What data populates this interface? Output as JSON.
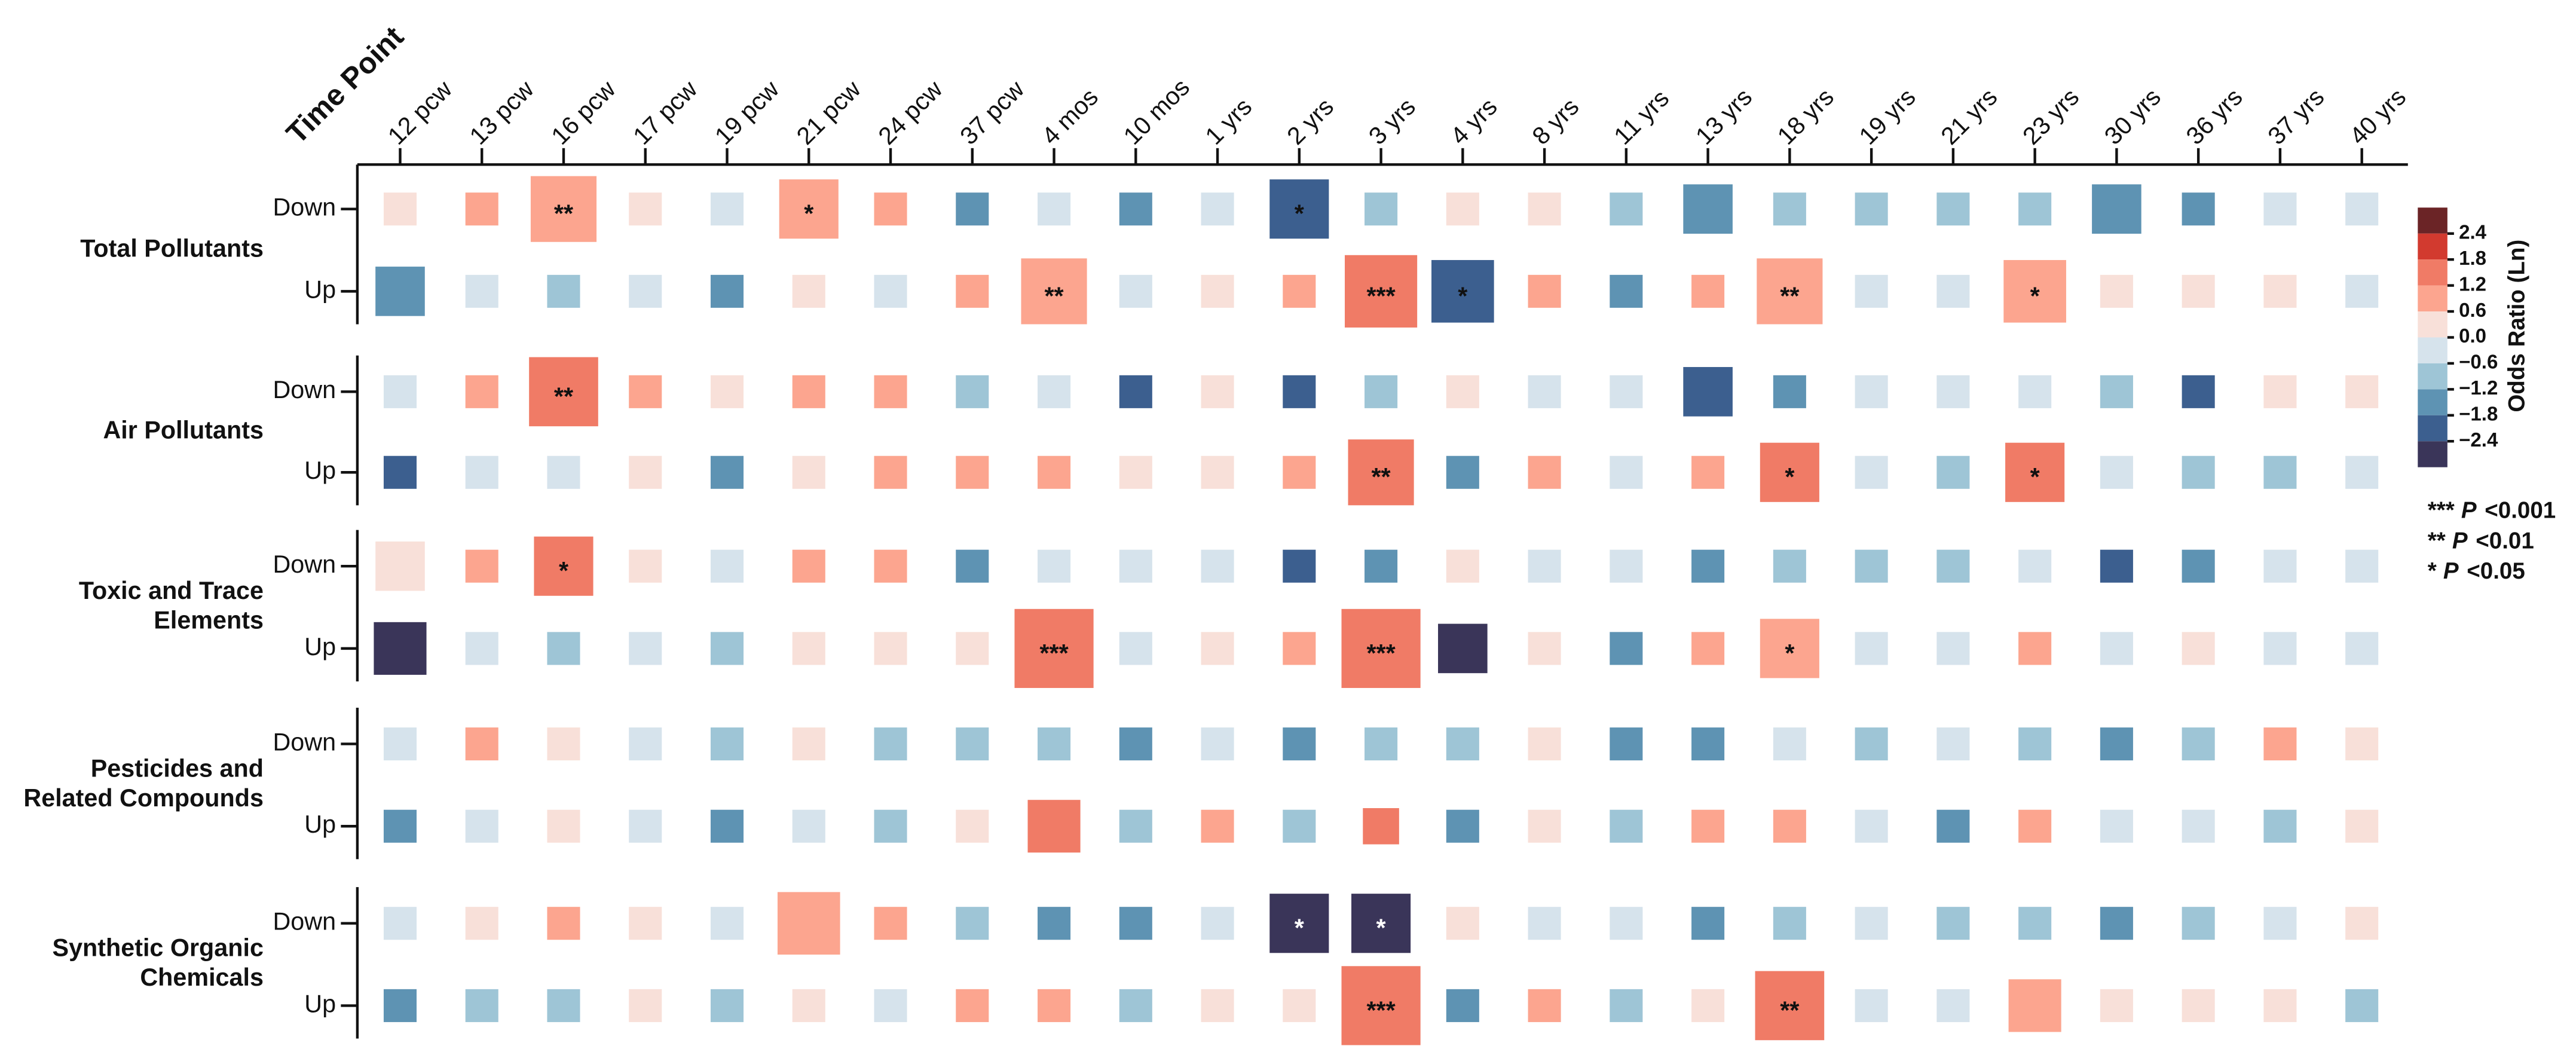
{
  "chart_data": {
    "type": "heatmap",
    "x_title": "Time Point",
    "categories": [
      "12 pcw",
      "13 pcw",
      "16 pcw",
      "17 pcw",
      "19 pcw",
      "21 pcw",
      "24 pcw",
      "37 pcw",
      "4 mos",
      "10 mos",
      "1 yrs",
      "2 yrs",
      "3 yrs",
      "4 yrs",
      "8 yrs",
      "11 yrs",
      "13 yrs",
      "18 yrs",
      "19 yrs",
      "21 yrs",
      "23 yrs",
      "30 yrs",
      "36 yrs",
      "37 yrs",
      "40 yrs"
    ],
    "groups": [
      {
        "name": [
          "Total Pollutants"
        ],
        "rows": [
          {
            "label": "Down",
            "values": [
              0.1,
              0.7,
              0.9,
              0.3,
              -0.3,
              0.8,
              0.7,
              -1.3,
              -0.4,
              -1.3,
              -0.4,
              -2.0,
              -0.9,
              0.2,
              0.1,
              -0.7,
              -1.3,
              -0.9,
              -0.9,
              -0.9,
              -0.9,
              -1.3,
              -1.3,
              -0.4,
              -0.2
            ],
            "sizes": [
              0.5,
              0.5,
              1,
              0.5,
              0.5,
              0.9,
              0.5,
              0.5,
              0.5,
              0.5,
              0.5,
              0.9,
              0.5,
              0.5,
              0.5,
              0.5,
              0.75,
              0.5,
              0.5,
              0.5,
              0.5,
              0.75,
              0.5,
              0.5,
              0.5
            ],
            "significance": [
              null,
              null,
              "**",
              null,
              null,
              "*",
              null,
              null,
              null,
              null,
              null,
              "*",
              null,
              null,
              null,
              null,
              null,
              null,
              null,
              null,
              null,
              null,
              null,
              null,
              null
            ]
          },
          {
            "label": "Up",
            "values": [
              -1.3,
              -0.3,
              -0.7,
              -0.3,
              -1.3,
              0.1,
              -0.3,
              0.8,
              0.9,
              -0.3,
              0.4,
              0.7,
              1.4,
              -2.0,
              0.7,
              -1.3,
              0.7,
              0.9,
              -0.3,
              -0.4,
              0.9,
              0.2,
              0.1,
              0.1,
              -0.3
            ],
            "sizes": [
              0.75,
              0.5,
              0.5,
              0.5,
              0.5,
              0.5,
              0.5,
              0.5,
              1,
              0.5,
              0.5,
              0.5,
              1.1,
              0.95,
              0.5,
              0.5,
              0.5,
              1,
              0.5,
              0.5,
              0.95,
              0.5,
              0.5,
              0.5,
              0.5
            ],
            "significance": [
              null,
              null,
              null,
              null,
              null,
              null,
              null,
              null,
              "**",
              null,
              null,
              null,
              "***",
              "*",
              null,
              null,
              null,
              "**",
              null,
              null,
              "*",
              null,
              null,
              null,
              null
            ]
          }
        ]
      },
      {
        "name": [
          "Air Pollutants"
        ],
        "rows": [
          {
            "label": "Down",
            "values": [
              -0.3,
              0.7,
              1.4,
              0.7,
              0.3,
              1.0,
              0.7,
              -0.9,
              -0.4,
              -2.0,
              0.1,
              -2.0,
              -0.9,
              0.3,
              -0.5,
              -0.5,
              -2.0,
              -1.3,
              -0.5,
              -0.5,
              -0.5,
              -0.9,
              -2.0,
              0.1,
              0.05
            ],
            "sizes": [
              0.5,
              0.5,
              1.05,
              0.5,
              0.5,
              0.5,
              0.5,
              0.5,
              0.5,
              0.5,
              0.5,
              0.5,
              0.5,
              0.5,
              0.5,
              0.5,
              0.75,
              0.5,
              0.5,
              0.5,
              0.5,
              0.5,
              0.5,
              0.5,
              0.5
            ],
            "significance": [
              null,
              null,
              "**",
              null,
              null,
              null,
              null,
              null,
              null,
              null,
              null,
              null,
              null,
              null,
              null,
              null,
              null,
              null,
              null,
              null,
              null,
              null,
              null,
              null,
              null
            ]
          },
          {
            "label": "Up",
            "values": [
              -2.0,
              -0.3,
              -0.3,
              0.1,
              -1.3,
              0.5,
              0.7,
              0.9,
              1.0,
              0.05,
              0.6,
              0.8,
              1.5,
              -1.3,
              1.0,
              -0.4,
              0.9,
              1.5,
              -0.5,
              -0.9,
              1.5,
              -0.4,
              -0.9,
              -0.9,
              -0.4
            ],
            "sizes": [
              0.5,
              0.5,
              0.5,
              0.5,
              0.5,
              0.5,
              0.5,
              0.5,
              0.5,
              0.5,
              0.5,
              0.5,
              1,
              0.5,
              0.5,
              0.5,
              0.5,
              0.9,
              0.5,
              0.5,
              0.9,
              0.5,
              0.5,
              0.5,
              0.5
            ],
            "significance": [
              null,
              null,
              null,
              null,
              null,
              null,
              null,
              null,
              null,
              null,
              null,
              null,
              "**",
              null,
              null,
              null,
              null,
              "*",
              null,
              null,
              "*",
              null,
              null,
              null,
              null
            ]
          }
        ]
      },
      {
        "name": [
          "Toxic and Trace",
          "Elements"
        ],
        "rows": [
          {
            "label": "Down",
            "values": [
              0.3,
              0.7,
              1.4,
              0.4,
              -0.4,
              0.9,
              0.7,
              -1.3,
              -0.3,
              -0.3,
              -0.2,
              -2.0,
              -1.3,
              0.5,
              -0.2,
              -0.5,
              -1.3,
              -0.9,
              -0.6,
              -0.6,
              -0.5,
              -2.0,
              -1.3,
              -0.2,
              -0.2
            ],
            "sizes": [
              0.75,
              0.5,
              0.9,
              0.5,
              0.5,
              0.5,
              0.5,
              0.5,
              0.5,
              0.5,
              0.5,
              0.5,
              0.5,
              0.5,
              0.5,
              0.5,
              0.5,
              0.5,
              0.5,
              0.5,
              0.5,
              0.5,
              0.5,
              0.5,
              0.5
            ],
            "significance": [
              null,
              null,
              "*",
              null,
              null,
              null,
              null,
              null,
              null,
              null,
              null,
              null,
              null,
              null,
              null,
              null,
              null,
              null,
              null,
              null,
              null,
              null,
              null,
              null,
              null
            ]
          },
          {
            "label": "Up",
            "values": [
              -2.6,
              -0.3,
              -0.9,
              -0.2,
              -0.9,
              0.6,
              0.1,
              0.4,
              1.5,
              -0.4,
              0.6,
              0.8,
              1.5,
              -2.6,
              0.5,
              -1.3,
              0.8,
              0.9,
              -0.2,
              -0.5,
              0.8,
              -0.3,
              0.2,
              -0.3,
              -0.2
            ],
            "sizes": [
              0.8,
              0.5,
              0.5,
              0.5,
              0.5,
              0.5,
              0.5,
              0.5,
              1.2,
              0.5,
              0.5,
              0.5,
              1.2,
              0.75,
              0.5,
              0.5,
              0.5,
              0.9,
              0.5,
              0.5,
              0.5,
              0.5,
              0.5,
              0.5,
              0.5
            ],
            "significance": [
              null,
              null,
              null,
              null,
              null,
              null,
              null,
              null,
              "***",
              null,
              null,
              null,
              "***",
              null,
              null,
              null,
              null,
              "*",
              null,
              null,
              null,
              null,
              null,
              null,
              null
            ]
          }
        ]
      },
      {
        "name": [
          "Pesticides and",
          "Related Compounds"
        ],
        "rows": [
          {
            "label": "Down",
            "values": [
              -0.3,
              0.8,
              0.6,
              -0.3,
              -0.9,
              0.4,
              -0.9,
              -0.9,
              -0.9,
              -1.5,
              -0.3,
              -1.5,
              -0.9,
              -0.9,
              0.1,
              -1.5,
              -1.5,
              -0.3,
              -0.9,
              -0.3,
              -0.9,
              -1.5,
              -0.9,
              0.7,
              0.4
            ],
            "sizes": [
              0.5,
              0.5,
              0.5,
              0.5,
              0.5,
              0.5,
              0.5,
              0.5,
              0.5,
              0.5,
              0.5,
              0.5,
              0.5,
              0.5,
              0.5,
              0.5,
              0.5,
              0.5,
              0.5,
              0.5,
              0.5,
              0.5,
              0.5,
              0.5,
              0.5
            ],
            "significance": [
              null,
              null,
              null,
              null,
              null,
              null,
              null,
              null,
              null,
              null,
              null,
              null,
              null,
              null,
              null,
              null,
              null,
              null,
              null,
              null,
              null,
              null,
              null,
              null,
              null
            ]
          },
          {
            "label": "Up",
            "values": [
              -1.5,
              -0.3,
              0.1,
              -0.3,
              -1.5,
              -0.3,
              -0.9,
              0.6,
              1.4,
              -0.9,
              0.7,
              -0.9,
              1.3,
              -1.5,
              0.4,
              -0.9,
              0.7,
              0.8,
              -0.5,
              -1.7,
              0.8,
              -0.4,
              -0.4,
              -0.9,
              0.5
            ],
            "sizes": [
              0.5,
              0.5,
              0.5,
              0.5,
              0.5,
              0.5,
              0.5,
              0.5,
              0.8,
              0.5,
              0.5,
              0.5,
              0.55,
              0.5,
              0.5,
              0.5,
              0.5,
              0.5,
              0.5,
              0.5,
              0.5,
              0.5,
              0.5,
              0.5,
              0.5
            ],
            "significance": [
              null,
              null,
              null,
              null,
              null,
              null,
              null,
              null,
              null,
              null,
              null,
              null,
              null,
              null,
              null,
              null,
              null,
              null,
              null,
              null,
              null,
              null,
              null,
              null,
              null
            ]
          }
        ]
      },
      {
        "name": [
          "Synthetic Organic",
          "Chemicals"
        ],
        "rows": [
          {
            "label": "Down",
            "values": [
              -0.3,
              0.4,
              0.9,
              0.4,
              -0.3,
              0.8,
              0.7,
              -0.9,
              -1.3,
              -1.5,
              -0.2,
              -2.6,
              -2.6,
              0.2,
              -0.3,
              -0.4,
              -1.5,
              -0.9,
              -0.4,
              -0.9,
              -0.9,
              -1.5,
              -0.9,
              -0.3,
              0.1
            ],
            "sizes": [
              0.5,
              0.5,
              0.5,
              0.5,
              0.5,
              0.95,
              0.5,
              0.5,
              0.5,
              0.5,
              0.5,
              0.9,
              0.9,
              0.5,
              0.5,
              0.5,
              0.5,
              0.5,
              0.5,
              0.5,
              0.5,
              0.5,
              0.5,
              0.5,
              0.5
            ],
            "significance": [
              null,
              null,
              null,
              null,
              null,
              null,
              null,
              null,
              null,
              null,
              null,
              "*",
              "*",
              null,
              null,
              null,
              null,
              null,
              null,
              null,
              null,
              null,
              null,
              null,
              null
            ]
          },
          {
            "label": "Up",
            "values": [
              -1.5,
              -0.9,
              -0.7,
              0.1,
              -0.9,
              0.2,
              -0.3,
              0.9,
              0.7,
              -0.9,
              0.4,
              0.6,
              1.5,
              -1.3,
              0.7,
              -0.9,
              0.5,
              1.3,
              -0.5,
              -0.4,
              0.9,
              0.1,
              0.2,
              0.15,
              -0.6
            ],
            "sizes": [
              0.5,
              0.5,
              0.5,
              0.5,
              0.5,
              0.5,
              0.5,
              0.5,
              0.5,
              0.5,
              0.5,
              0.5,
              1.2,
              0.5,
              0.5,
              0.5,
              0.5,
              1.05,
              0.5,
              0.5,
              0.8,
              0.5,
              0.5,
              0.5,
              0.5
            ],
            "significance": [
              null,
              null,
              null,
              null,
              null,
              null,
              null,
              null,
              null,
              null,
              null,
              null,
              "***",
              null,
              null,
              null,
              null,
              "**",
              null,
              null,
              null,
              null,
              null,
              null,
              null
            ]
          }
        ]
      }
    ],
    "colorbar": {
      "title": "Odds Ratio (Ln)",
      "ticks": [
        2.4,
        1.8,
        1.2,
        0.6,
        {
          "value": 0,
          "label": "0.0"
        },
        {
          "value": -0.6,
          "label": "−0.6"
        },
        {
          "value": -1.2,
          "label": "−1.2"
        },
        {
          "value": -1.8,
          "label": "−1.8"
        },
        {
          "value": -2.4,
          "label": "−2.4"
        }
      ],
      "colors": [
        "#6b2426",
        "#d23a2f",
        "#f07b66",
        "#fca58f",
        "#f8e0d9",
        "#d6e3ec",
        "#9ec5d6",
        "#5e93b3",
        "#3c5f8f",
        "#3a3559"
      ]
    },
    "significance_legend": [
      {
        "symbol": "***",
        "p": "P",
        "threshold": "<0.001"
      },
      {
        "symbol": "**",
        "p": "P",
        "threshold": "<0.01"
      },
      {
        "symbol": "*",
        "p": "P",
        "threshold": "<0.05"
      }
    ]
  }
}
